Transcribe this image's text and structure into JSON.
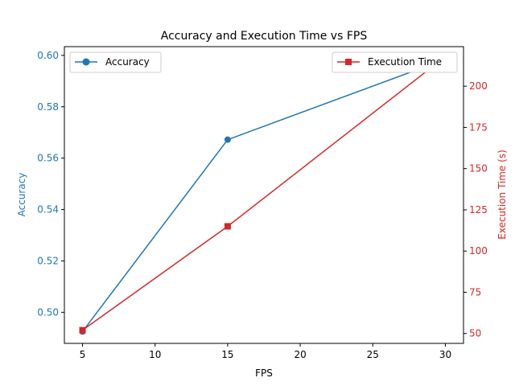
{
  "chart_data": {
    "type": "line",
    "title": "Accuracy and Execution Time vs FPS",
    "xlabel": "FPS",
    "x": [
      5,
      15,
      30
    ],
    "xlim": [
      3.75,
      31.25
    ],
    "xticks": [
      5,
      10,
      15,
      20,
      25,
      30
    ],
    "y_left": {
      "label": "Accuracy",
      "color": "#1f77b4",
      "lim": [
        0.4879,
        0.6034
      ],
      "ticks": [
        "0.50",
        "0.52",
        "0.54",
        "0.56",
        "0.58",
        "0.60"
      ]
    },
    "y_right": {
      "label": "Execution Time (s)",
      "color": "#d62728",
      "lim": [
        44,
        224
      ],
      "ticks": [
        "50",
        "75",
        "100",
        "125",
        "150",
        "175",
        "200"
      ]
    },
    "series": [
      {
        "name": "Accuracy",
        "axis": "left",
        "color": "#1f77b4",
        "marker": "circle",
        "values": [
          0.4925,
          0.5672,
          0.5985
        ]
      },
      {
        "name": "Execution Time",
        "axis": "right",
        "color": "#d62728",
        "marker": "square",
        "values": [
          52,
          115,
          218
        ]
      }
    ],
    "legends": [
      {
        "series": "Accuracy",
        "position": "upper-left"
      },
      {
        "series": "Execution Time",
        "position": "upper-right"
      }
    ],
    "grid": false
  }
}
